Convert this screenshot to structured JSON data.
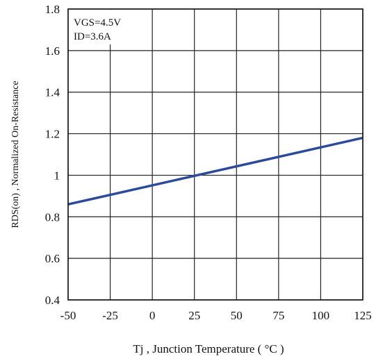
{
  "chart_data": {
    "type": "line",
    "xlabel": "Tj , Junction Temperature ( °C )",
    "ylabel": "RDS(on) , Normalized On-Resistance",
    "xlim": [
      -50,
      125
    ],
    "ylim": [
      0.4,
      1.8
    ],
    "x_ticks": [
      -50,
      -25,
      0,
      25,
      50,
      75,
      100,
      125
    ],
    "y_ticks": [
      0.4,
      0.6,
      0.8,
      1,
      1.2,
      1.4,
      1.6,
      1.8
    ],
    "x_tick_labels": [
      "-50",
      "-25",
      "0",
      "25",
      "50",
      "75",
      "100",
      "125"
    ],
    "y_tick_labels": [
      "0.4",
      "0.6",
      "0.8",
      "1",
      "1.2",
      "1.4",
      "1.6",
      "1.8"
    ],
    "grid": true,
    "annotations": [
      "VGS=4.5V",
      "ID=3.6A"
    ],
    "series": [
      {
        "x": [
          -50,
          125
        ],
        "y": [
          0.86,
          1.18
        ],
        "color": "#2b4a9a"
      }
    ]
  }
}
